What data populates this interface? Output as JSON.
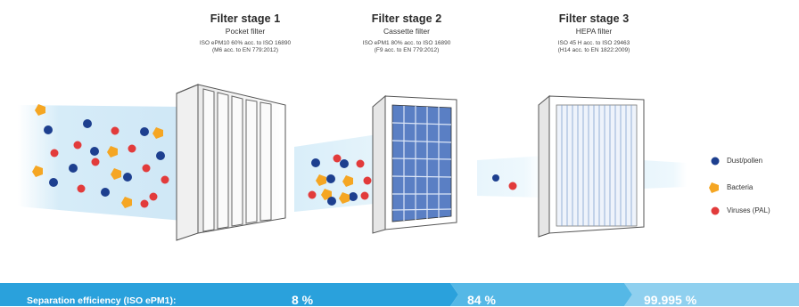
{
  "stages": [
    {
      "title": "Filter stage 1",
      "subtitle": "Pocket filter",
      "spec_line1": "ISO ePM10 60% acc. to ISO 16890",
      "spec_line2": "(M6 acc. to EN 779:2012)"
    },
    {
      "title": "Filter stage 2",
      "subtitle": "Cassette filter",
      "spec_line1": "ISO ePM1 80% acc. to ISO 16890",
      "spec_line2": "(F9 acc. to EN 779:2012)"
    },
    {
      "title": "Filter stage 3",
      "subtitle": "HEPA filter",
      "spec_line1": "ISO 45 H acc. to ISO 29463",
      "spec_line2": "(H14 acc. to EN 1822:2009)"
    }
  ],
  "legend": [
    {
      "label": "Dust/pollen",
      "color": "#1d3f8f",
      "shape": "circle"
    },
    {
      "label": "Bacteria",
      "color": "#f5a623",
      "shape": "pentagon"
    },
    {
      "label": "Viruses (PAL)",
      "color": "#e23b3b",
      "shape": "circle"
    }
  ],
  "efficiency": {
    "label": "Separation efficiency (ISO ePM1):",
    "values": [
      "8 %",
      "84 %",
      "99.995 %"
    ]
  },
  "colors": {
    "dust": "#1d3f8f",
    "bacteria": "#f5a623",
    "virus": "#e23b3b",
    "bar_dark": "#2aa1dc",
    "bar_mid": "#55b8e6",
    "bar_light": "#8fd0ef",
    "air": "#d6ecf8"
  }
}
